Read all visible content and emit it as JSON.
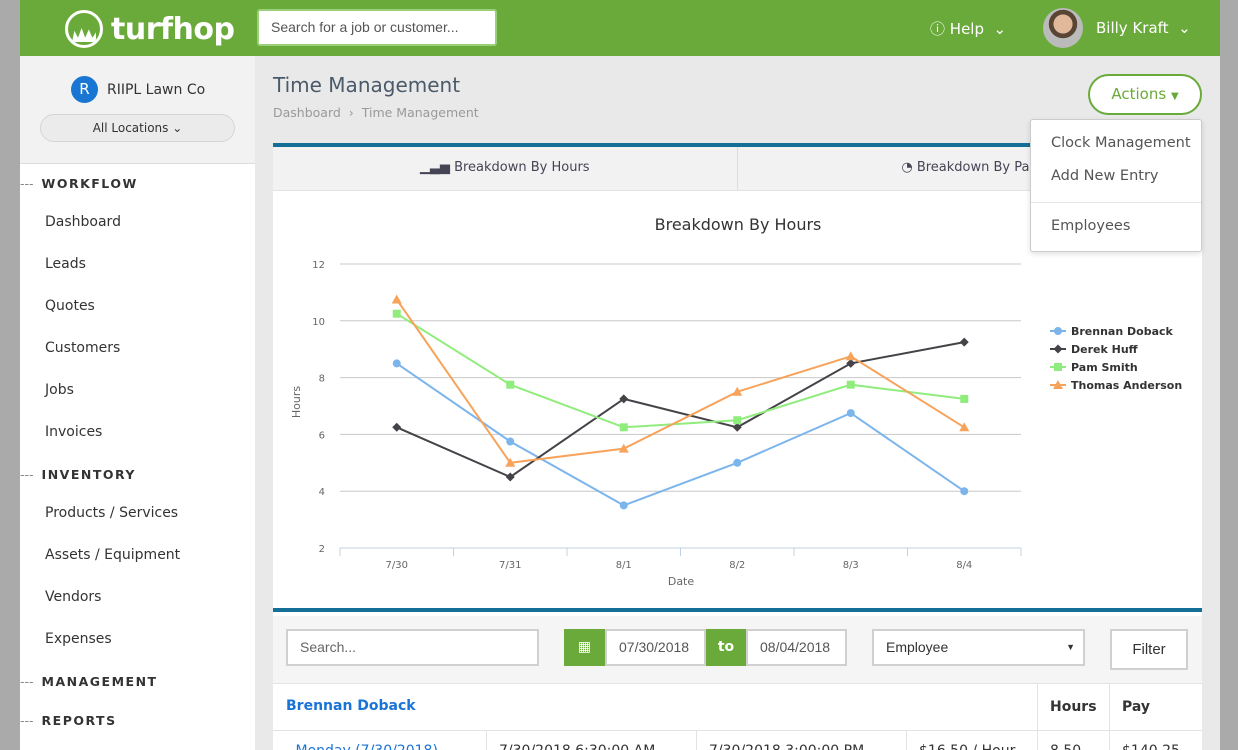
{
  "topbar": {
    "logo": "turfhop",
    "search_placeholder": "Search for a job or customer...",
    "help": "Help",
    "user": "Billy Kraft"
  },
  "sidebar": {
    "org_initial": "R",
    "org_name": "RIIPL Lawn Co",
    "location": "All Locations",
    "sections": [
      {
        "label": "WORKFLOW",
        "items": [
          "Dashboard",
          "Leads",
          "Quotes",
          "Customers",
          "Jobs",
          "Invoices"
        ]
      },
      {
        "label": "INVENTORY",
        "items": [
          "Products / Services",
          "Assets / Equipment",
          "Vendors",
          "Expenses"
        ]
      },
      {
        "label": "MANAGEMENT",
        "items": []
      },
      {
        "label": "REPORTS",
        "items": []
      }
    ]
  },
  "page": {
    "title": "Time Management",
    "breadcrumb": [
      "Dashboard",
      "Time Management"
    ],
    "actions": "Actions"
  },
  "actions_menu": [
    "Clock Management",
    "Add New Entry",
    "Employees"
  ],
  "tabs": [
    "Breakdown By Hours",
    "Breakdown By Pay"
  ],
  "chart_data": {
    "type": "line",
    "title": "Breakdown By Hours",
    "xlabel": "Date",
    "ylabel": "Hours",
    "categories": [
      "7/30",
      "7/31",
      "8/1",
      "8/2",
      "8/3",
      "8/4"
    ],
    "ylim": [
      2,
      12
    ],
    "yticks": [
      2,
      4,
      6,
      8,
      10,
      12
    ],
    "grid": true,
    "legend": "right",
    "series": [
      {
        "name": "Brennan Doback",
        "color": "#7cb5ec",
        "marker": "circle",
        "values": [
          8.5,
          5.75,
          3.5,
          5,
          6.75,
          4
        ]
      },
      {
        "name": "Derek Huff",
        "color": "#434348",
        "marker": "diamond",
        "values": [
          6.25,
          4.5,
          7.25,
          6.25,
          8.5,
          9.25
        ]
      },
      {
        "name": "Pam Smith",
        "color": "#90ed7d",
        "marker": "square",
        "values": [
          10.25,
          7.75,
          6.25,
          6.5,
          7.75,
          7.25
        ]
      },
      {
        "name": "Thomas Anderson",
        "color": "#f7a35c",
        "marker": "triangle",
        "values": [
          10.75,
          5,
          5.5,
          7.5,
          8.75,
          6.25
        ]
      }
    ]
  },
  "filters": {
    "search_placeholder": "Search...",
    "from": "07/30/2018",
    "to_label": "to",
    "to": "08/04/2018",
    "employee": "Employee",
    "filter": "Filter"
  },
  "table": {
    "employee": "Brennan Doback",
    "headers": [
      "Hours",
      "Pay"
    ],
    "rows": [
      [
        "- Monday (7/30/2018)",
        "7/30/2018 6:30:00 AM",
        "7/30/2018 3:00:00 PM",
        "$16.50 / Hour",
        "8.50",
        "$140.25"
      ]
    ]
  }
}
